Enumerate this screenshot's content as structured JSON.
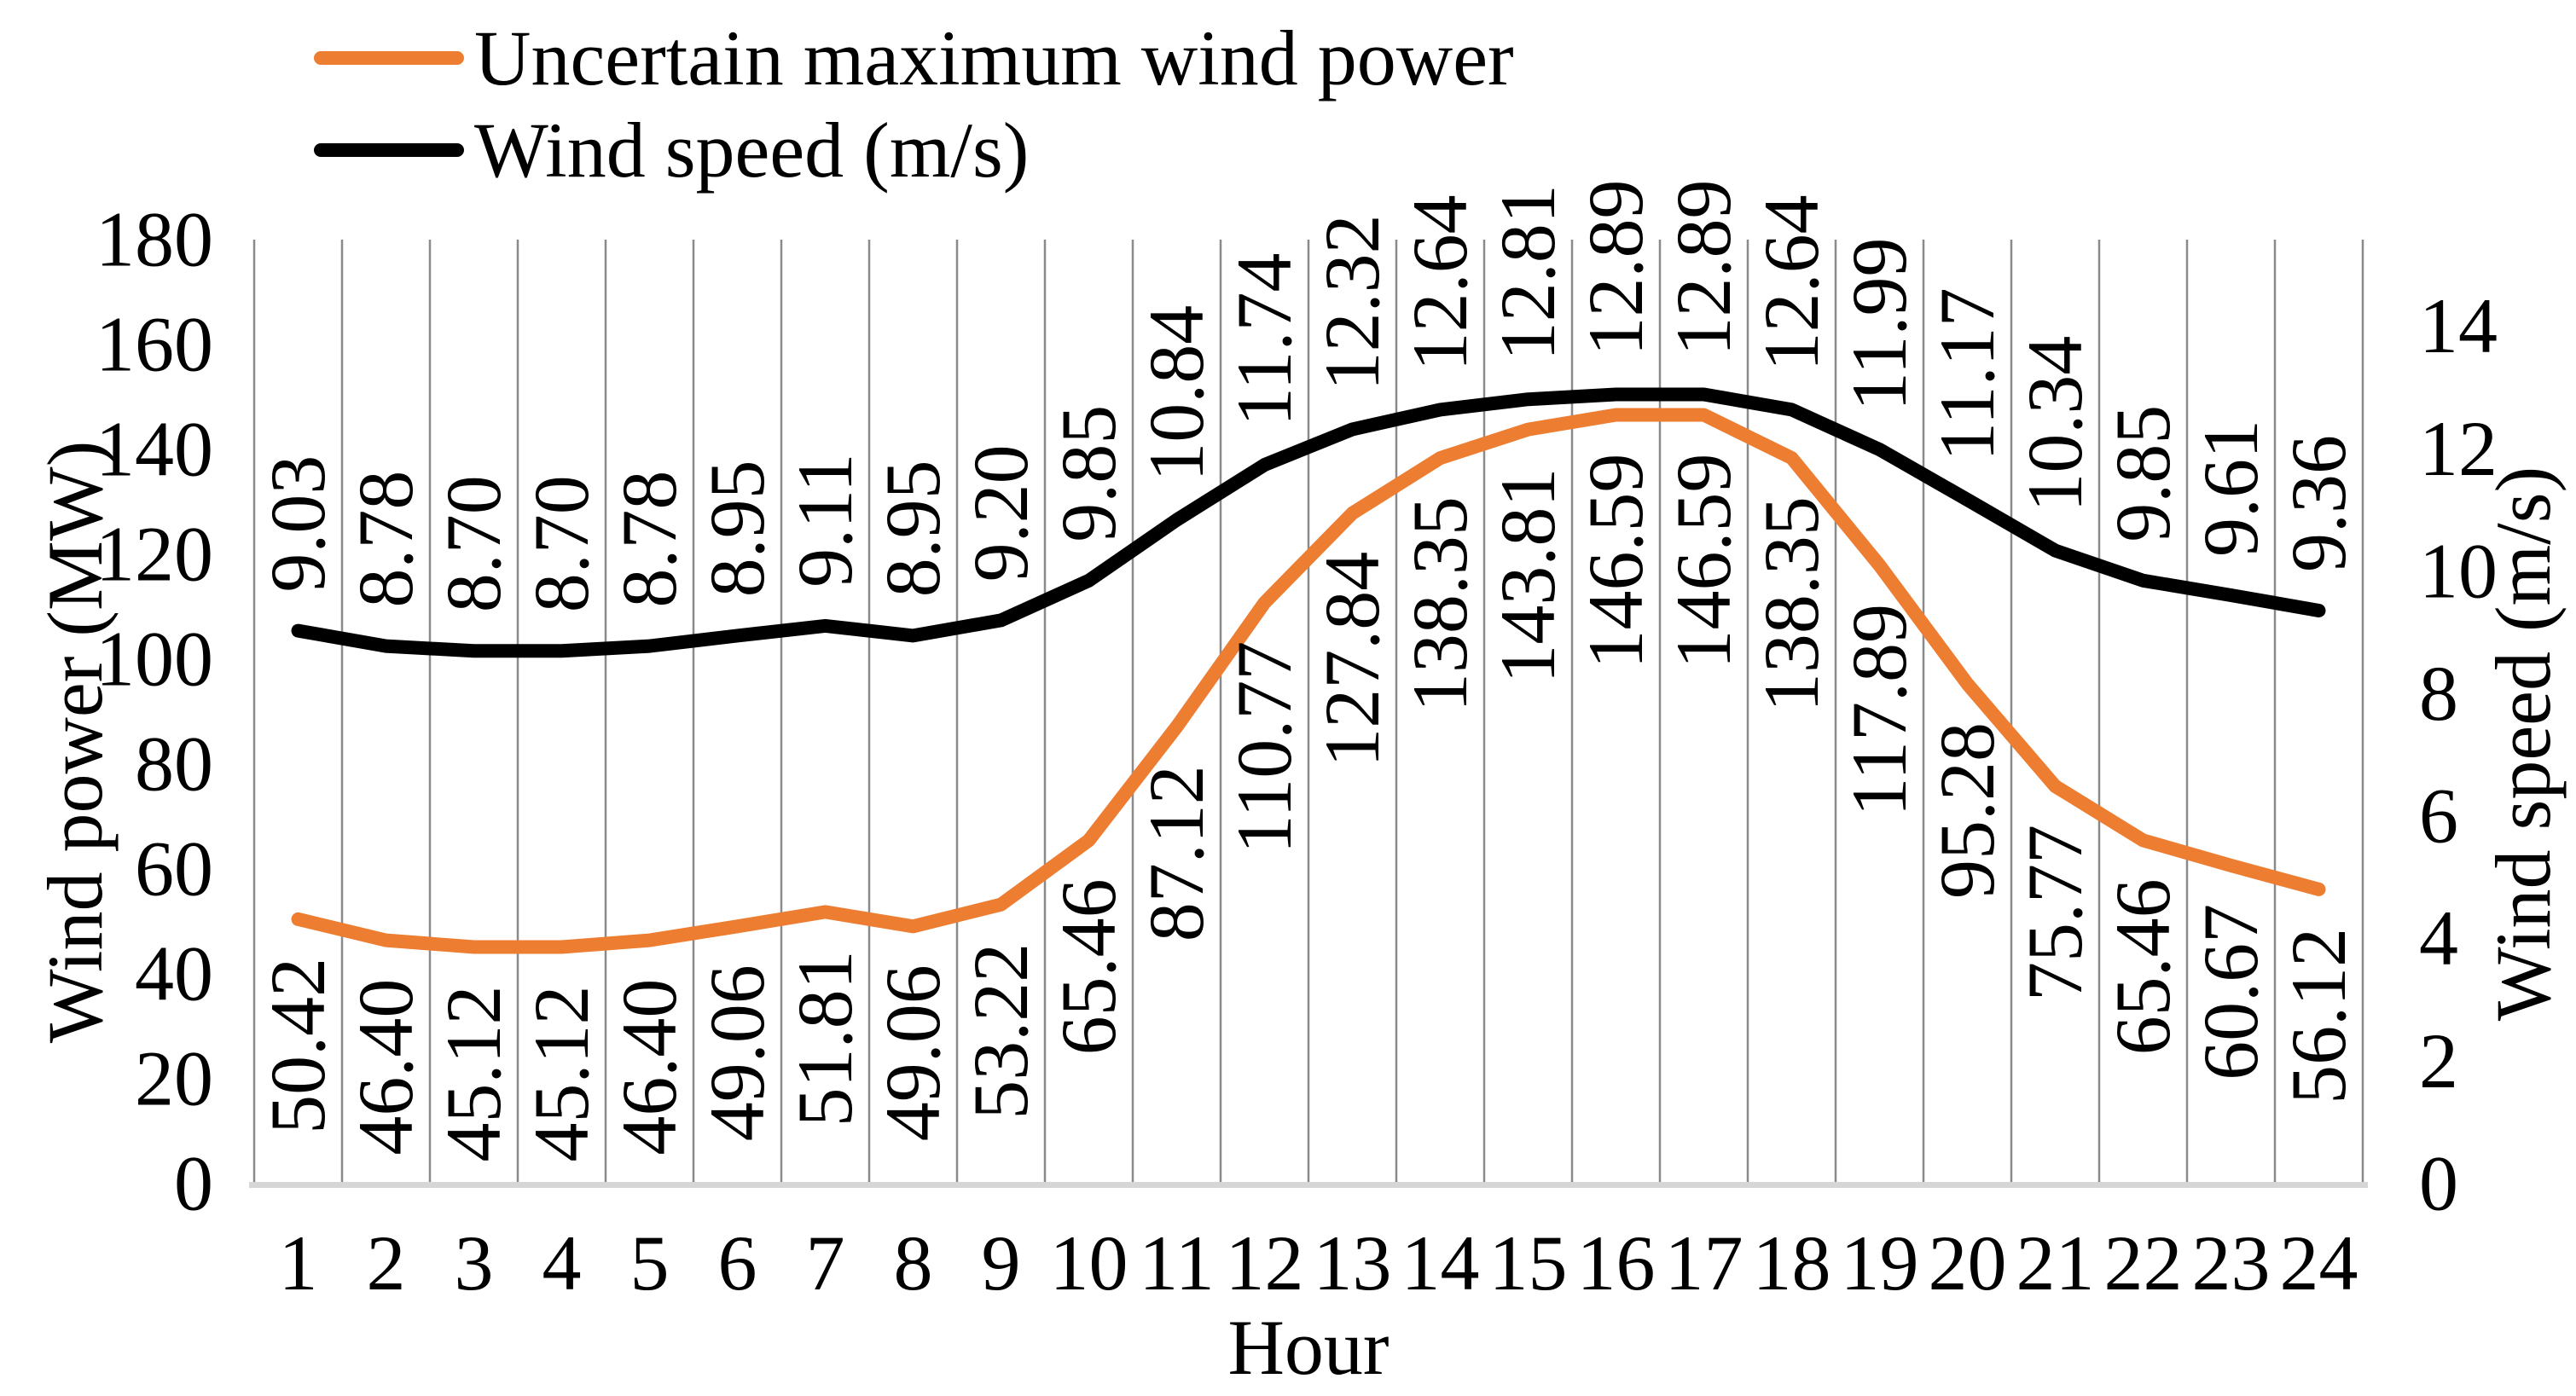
{
  "legend": [
    {
      "label": "Uncertain maximum wind power",
      "color": "#ED7D31"
    },
    {
      "label": "Wind speed (m/s)",
      "color": "#000000"
    }
  ],
  "chart_data": {
    "type": "line",
    "title": "",
    "xlabel": "Hour",
    "categories": [
      1,
      2,
      3,
      4,
      5,
      6,
      7,
      8,
      9,
      10,
      11,
      12,
      13,
      14,
      15,
      16,
      17,
      18,
      19,
      20,
      21,
      22,
      23,
      24
    ],
    "series": [
      {
        "name": "Uncertain maximum wind power",
        "axis": "left",
        "color": "#ED7D31",
        "label_position": "below",
        "values": [
          50.42,
          46.4,
          45.12,
          45.12,
          46.4,
          49.06,
          51.81,
          49.06,
          53.22,
          65.46,
          87.12,
          110.77,
          127.84,
          138.35,
          143.81,
          146.59,
          146.59,
          138.35,
          117.89,
          95.28,
          75.77,
          65.46,
          60.67,
          56.12
        ]
      },
      {
        "name": "Wind speed (m/s)",
        "axis": "right",
        "color": "#000000",
        "label_position": "above",
        "values": [
          9.03,
          8.78,
          8.7,
          8.7,
          8.78,
          8.95,
          9.11,
          8.95,
          9.2,
          9.85,
          10.84,
          11.74,
          12.32,
          12.64,
          12.81,
          12.89,
          12.89,
          12.64,
          11.99,
          11.17,
          10.34,
          9.85,
          9.61,
          9.36
        ]
      }
    ],
    "left_axis": {
      "label": "Wind power (MW)",
      "ticks": [
        0,
        20,
        40,
        60,
        80,
        100,
        120,
        140,
        160,
        180
      ],
      "ylim": [
        0,
        180
      ]
    },
    "right_axis": {
      "label": "Wind speed (m/s)",
      "ticks": [
        0,
        2,
        4,
        6,
        8,
        10,
        12,
        14
      ],
      "ylim": [
        0,
        14
      ]
    },
    "grid": "vertical-only",
    "legend_position": "top-left",
    "colors": {
      "gridline": "#8a8a8a",
      "axis_line": "#d6d6d6",
      "text": "#000000"
    }
  }
}
